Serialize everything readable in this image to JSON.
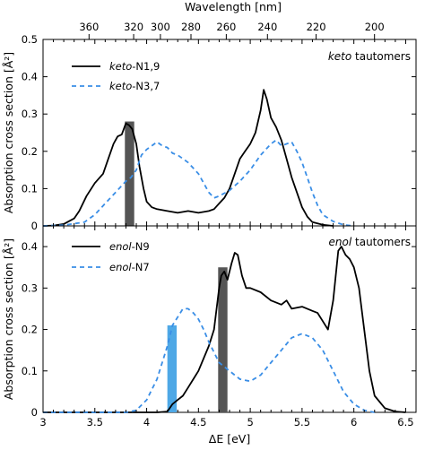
{
  "chart_data": [
    {
      "type": "line",
      "panel": "keto",
      "title_prefix": "keto",
      "title_suffix": " tautomers",
      "ylabel": "Absorption cross section [Å²]",
      "top_axis_label": "Wavelength [nm]",
      "top_ticks": [
        {
          "label": "360",
          "nm": 360
        },
        {
          "label": "320",
          "nm": 320
        },
        {
          "label": "300",
          "nm": 300
        },
        {
          "label": "280",
          "nm": 280
        },
        {
          "label": "260",
          "nm": 260
        },
        {
          "label": "240",
          "nm": 240
        },
        {
          "label": "220",
          "nm": 220
        },
        {
          "label": "200",
          "nm": 200
        }
      ],
      "xlim": [
        3,
        6.6
      ],
      "ylim": [
        0,
        0.5
      ],
      "yticks": [
        "0",
        "0.1",
        "0.2",
        "0.3",
        "0.4",
        "0.5"
      ],
      "legend_position": "top-left",
      "series": [
        {
          "name_prefix": "keto",
          "name_suffix": "-N1,9",
          "style": "solid",
          "color": "#000000",
          "points": [
            [
              3.0,
              0.0
            ],
            [
              3.1,
              0.001
            ],
            [
              3.2,
              0.005
            ],
            [
              3.3,
              0.02
            ],
            [
              3.35,
              0.04
            ],
            [
              3.42,
              0.08
            ],
            [
              3.5,
              0.115
            ],
            [
              3.58,
              0.14
            ],
            [
              3.63,
              0.18
            ],
            [
              3.68,
              0.22
            ],
            [
              3.72,
              0.24
            ],
            [
              3.76,
              0.245
            ],
            [
              3.8,
              0.275
            ],
            [
              3.83,
              0.27
            ],
            [
              3.86,
              0.26
            ],
            [
              3.9,
              0.22
            ],
            [
              3.93,
              0.16
            ],
            [
              3.97,
              0.1
            ],
            [
              4.0,
              0.065
            ],
            [
              4.05,
              0.05
            ],
            [
              4.1,
              0.045
            ],
            [
              4.2,
              0.04
            ],
            [
              4.3,
              0.035
            ],
            [
              4.4,
              0.04
            ],
            [
              4.5,
              0.035
            ],
            [
              4.6,
              0.04
            ],
            [
              4.65,
              0.045
            ],
            [
              4.7,
              0.06
            ],
            [
              4.75,
              0.075
            ],
            [
              4.8,
              0.1
            ],
            [
              4.85,
              0.14
            ],
            [
              4.9,
              0.18
            ],
            [
              4.95,
              0.2
            ],
            [
              5.0,
              0.22
            ],
            [
              5.05,
              0.25
            ],
            [
              5.1,
              0.31
            ],
            [
              5.13,
              0.365
            ],
            [
              5.16,
              0.34
            ],
            [
              5.2,
              0.29
            ],
            [
              5.25,
              0.265
            ],
            [
              5.3,
              0.23
            ],
            [
              5.35,
              0.18
            ],
            [
              5.4,
              0.13
            ],
            [
              5.45,
              0.09
            ],
            [
              5.5,
              0.05
            ],
            [
              5.55,
              0.025
            ],
            [
              5.6,
              0.01
            ],
            [
              5.7,
              0.003
            ],
            [
              5.8,
              0.0
            ]
          ]
        },
        {
          "name_prefix": "keto",
          "name_suffix": "-N3,7",
          "style": "dashed",
          "color": "#3a8ee6",
          "points": [
            [
              3.0,
              0.0
            ],
            [
              3.2,
              0.002
            ],
            [
              3.4,
              0.01
            ],
            [
              3.5,
              0.03
            ],
            [
              3.6,
              0.06
            ],
            [
              3.7,
              0.09
            ],
            [
              3.8,
              0.12
            ],
            [
              3.85,
              0.13
            ],
            [
              3.9,
              0.15
            ],
            [
              3.95,
              0.19
            ],
            [
              4.0,
              0.205
            ],
            [
              4.05,
              0.215
            ],
            [
              4.1,
              0.225
            ],
            [
              4.15,
              0.215
            ],
            [
              4.2,
              0.21
            ],
            [
              4.25,
              0.195
            ],
            [
              4.3,
              0.19
            ],
            [
              4.35,
              0.18
            ],
            [
              4.4,
              0.17
            ],
            [
              4.5,
              0.14
            ],
            [
              4.6,
              0.09
            ],
            [
              4.65,
              0.075
            ],
            [
              4.7,
              0.08
            ],
            [
              4.8,
              0.095
            ],
            [
              4.9,
              0.12
            ],
            [
              5.0,
              0.15
            ],
            [
              5.1,
              0.19
            ],
            [
              5.2,
              0.22
            ],
            [
              5.25,
              0.23
            ],
            [
              5.3,
              0.215
            ],
            [
              5.35,
              0.22
            ],
            [
              5.4,
              0.225
            ],
            [
              5.45,
              0.2
            ],
            [
              5.5,
              0.17
            ],
            [
              5.55,
              0.13
            ],
            [
              5.6,
              0.09
            ],
            [
              5.65,
              0.055
            ],
            [
              5.7,
              0.03
            ],
            [
              5.8,
              0.012
            ],
            [
              5.9,
              0.003
            ],
            [
              6.0,
              0.0
            ]
          ]
        }
      ],
      "bars": [
        {
          "x0": 3.79,
          "x1": 3.88,
          "height": 0.28,
          "color": "#555555"
        }
      ]
    },
    {
      "type": "line",
      "panel": "enol",
      "title_prefix": "enol",
      "title_suffix": " tautomers",
      "ylabel": "Absorption cross section [Å²]",
      "xlabel": "ΔE [eV]",
      "xlim": [
        3,
        6.6
      ],
      "ylim": [
        0,
        0.45
      ],
      "xticks": [
        "3",
        "3.5",
        "4",
        "4.5",
        "5",
        "5.5",
        "6",
        "6.5"
      ],
      "yticks": [
        "0",
        "0.1",
        "0.2",
        "0.3",
        "0.4"
      ],
      "legend_position": "top-left",
      "series": [
        {
          "name_prefix": "enol",
          "name_suffix": "-N9",
          "style": "solid",
          "color": "#000000",
          "points": [
            [
              3.0,
              0.0
            ],
            [
              4.0,
              0.0
            ],
            [
              4.1,
              0.0
            ],
            [
              4.2,
              0.002
            ],
            [
              4.25,
              0.02
            ],
            [
              4.3,
              0.03
            ],
            [
              4.35,
              0.04
            ],
            [
              4.4,
              0.06
            ],
            [
              4.45,
              0.08
            ],
            [
              4.5,
              0.1
            ],
            [
              4.55,
              0.13
            ],
            [
              4.6,
              0.16
            ],
            [
              4.65,
              0.2
            ],
            [
              4.7,
              0.3
            ],
            [
              4.72,
              0.33
            ],
            [
              4.75,
              0.34
            ],
            [
              4.78,
              0.32
            ],
            [
              4.82,
              0.36
            ],
            [
              4.85,
              0.385
            ],
            [
              4.88,
              0.38
            ],
            [
              4.92,
              0.33
            ],
            [
              4.96,
              0.3
            ],
            [
              5.0,
              0.3
            ],
            [
              5.1,
              0.29
            ],
            [
              5.2,
              0.27
            ],
            [
              5.3,
              0.26
            ],
            [
              5.35,
              0.27
            ],
            [
              5.4,
              0.25
            ],
            [
              5.5,
              0.255
            ],
            [
              5.6,
              0.245
            ],
            [
              5.65,
              0.24
            ],
            [
              5.7,
              0.22
            ],
            [
              5.75,
              0.2
            ],
            [
              5.8,
              0.27
            ],
            [
              5.85,
              0.39
            ],
            [
              5.88,
              0.4
            ],
            [
              5.92,
              0.38
            ],
            [
              5.96,
              0.37
            ],
            [
              6.0,
              0.35
            ],
            [
              6.05,
              0.3
            ],
            [
              6.1,
              0.2
            ],
            [
              6.15,
              0.1
            ],
            [
              6.2,
              0.04
            ],
            [
              6.3,
              0.01
            ],
            [
              6.4,
              0.002
            ],
            [
              6.5,
              0.0
            ]
          ]
        },
        {
          "name_prefix": "enol",
          "name_suffix": "-N7",
          "style": "dashed",
          "color": "#3a8ee6",
          "points": [
            [
              3.0,
              0.0
            ],
            [
              3.8,
              0.0
            ],
            [
              3.9,
              0.005
            ],
            [
              4.0,
              0.03
            ],
            [
              4.1,
              0.08
            ],
            [
              4.15,
              0.12
            ],
            [
              4.2,
              0.16
            ],
            [
              4.25,
              0.21
            ],
            [
              4.3,
              0.23
            ],
            [
              4.35,
              0.25
            ],
            [
              4.4,
              0.25
            ],
            [
              4.45,
              0.24
            ],
            [
              4.5,
              0.225
            ],
            [
              4.55,
              0.2
            ],
            [
              4.6,
              0.17
            ],
            [
              4.7,
              0.12
            ],
            [
              4.8,
              0.1
            ],
            [
              4.9,
              0.08
            ],
            [
              5.0,
              0.075
            ],
            [
              5.1,
              0.09
            ],
            [
              5.2,
              0.12
            ],
            [
              5.3,
              0.15
            ],
            [
              5.4,
              0.18
            ],
            [
              5.5,
              0.19
            ],
            [
              5.6,
              0.18
            ],
            [
              5.7,
              0.15
            ],
            [
              5.8,
              0.1
            ],
            [
              5.9,
              0.05
            ],
            [
              6.0,
              0.02
            ],
            [
              6.1,
              0.005
            ],
            [
              6.2,
              0.0
            ]
          ]
        }
      ],
      "bars": [
        {
          "x0": 4.2,
          "x1": 4.29,
          "height": 0.21,
          "color": "#4ea8e6"
        },
        {
          "x0": 4.69,
          "x1": 4.78,
          "height": 0.35,
          "color": "#555555"
        }
      ]
    }
  ]
}
